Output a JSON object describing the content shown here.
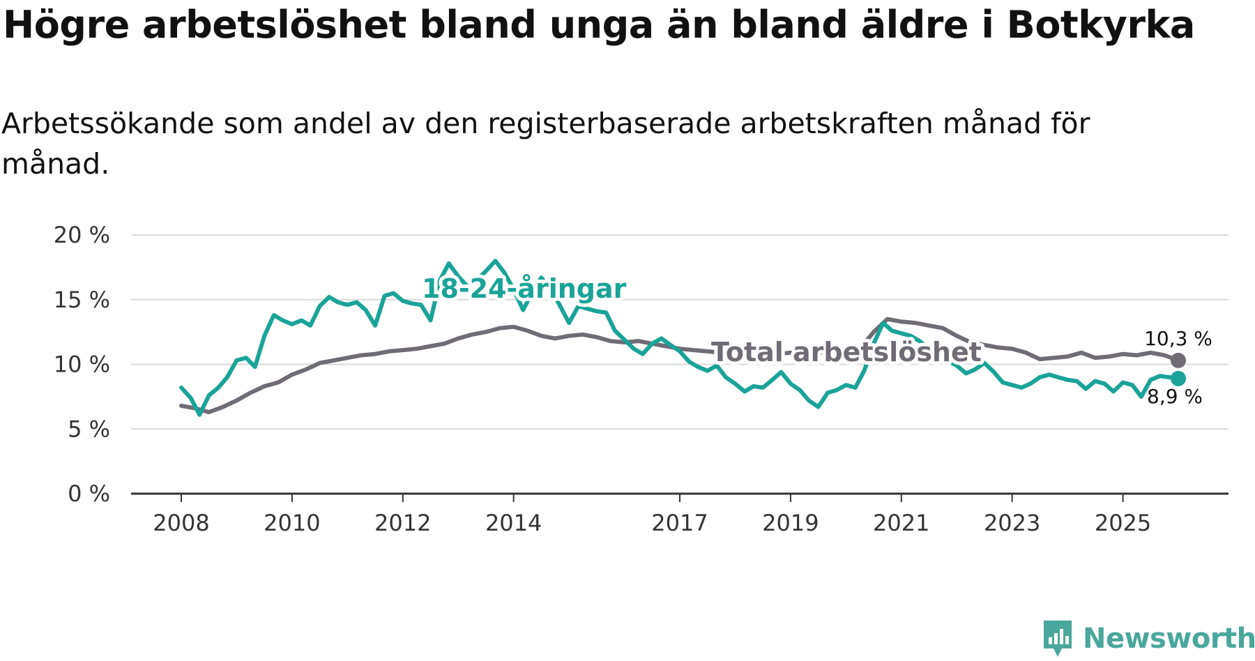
{
  "header": {
    "title": "Högre arbetslöshet bland unga än bland äldre i Botkyrka",
    "subtitle": "Arbetssökande som andel av den registerbaserade arbetskraften månad för månad."
  },
  "brand": {
    "name": "Newsworthy",
    "icon": "newsworthy-logo-icon",
    "color": "#4aa79d"
  },
  "chart_data": {
    "type": "line",
    "title": "Högre arbetslöshet bland unga än bland äldre i Botkyrka",
    "subtitle": "Arbetssökande som andel av den registerbaserade arbetskraften månad för månad.",
    "xlabel": "",
    "ylabel": "",
    "xlim": [
      2008,
      2026.25
    ],
    "ylim": [
      0,
      20
    ],
    "grid": true,
    "y_ticks": [
      0,
      5,
      10,
      15,
      20
    ],
    "y_tick_labels": [
      "0 %",
      "5 %",
      "10 %",
      "15 %",
      "20 %"
    ],
    "x_ticks": [
      2008,
      2010,
      2012,
      2014,
      2017,
      2019,
      2021,
      2023,
      2025
    ],
    "x_tick_labels": [
      "2008",
      "2010",
      "2012",
      "2014",
      "2017",
      "2019",
      "2021",
      "2023",
      "2025"
    ],
    "series": [
      {
        "name": "Total arbetslöshet",
        "color": "#706b74",
        "end_label": "10,3 %",
        "points": [
          [
            2008.0,
            6.8
          ],
          [
            2008.25,
            6.6
          ],
          [
            2008.5,
            6.3
          ],
          [
            2008.75,
            6.7
          ],
          [
            2009.0,
            7.2
          ],
          [
            2009.25,
            7.8
          ],
          [
            2009.5,
            8.3
          ],
          [
            2009.75,
            8.6
          ],
          [
            2010.0,
            9.2
          ],
          [
            2010.25,
            9.6
          ],
          [
            2010.5,
            10.1
          ],
          [
            2010.75,
            10.3
          ],
          [
            2011.0,
            10.5
          ],
          [
            2011.25,
            10.7
          ],
          [
            2011.5,
            10.8
          ],
          [
            2011.75,
            11.0
          ],
          [
            2012.0,
            11.1
          ],
          [
            2012.25,
            11.2
          ],
          [
            2012.5,
            11.4
          ],
          [
            2012.75,
            11.6
          ],
          [
            2013.0,
            12.0
          ],
          [
            2013.25,
            12.3
          ],
          [
            2013.5,
            12.5
          ],
          [
            2013.75,
            12.8
          ],
          [
            2014.0,
            12.9
          ],
          [
            2014.25,
            12.6
          ],
          [
            2014.5,
            12.2
          ],
          [
            2014.75,
            12.0
          ],
          [
            2015.0,
            12.2
          ],
          [
            2015.25,
            12.3
          ],
          [
            2015.5,
            12.1
          ],
          [
            2015.75,
            11.8
          ],
          [
            2016.0,
            11.7
          ],
          [
            2016.25,
            11.8
          ],
          [
            2016.5,
            11.6
          ],
          [
            2016.75,
            11.4
          ],
          [
            2017.0,
            11.2
          ],
          [
            2017.25,
            11.1
          ],
          [
            2017.5,
            11.0
          ],
          [
            2017.75,
            10.9
          ],
          [
            2018.0,
            10.8
          ],
          [
            2018.25,
            10.8
          ],
          [
            2018.5,
            10.7
          ],
          [
            2018.75,
            10.8
          ],
          [
            2019.0,
            10.9
          ],
          [
            2019.25,
            10.8
          ],
          [
            2019.5,
            10.9
          ],
          [
            2019.75,
            11.0
          ],
          [
            2020.0,
            11.0
          ],
          [
            2020.25,
            11.2
          ],
          [
            2020.5,
            12.5
          ],
          [
            2020.75,
            13.5
          ],
          [
            2021.0,
            13.3
          ],
          [
            2021.25,
            13.2
          ],
          [
            2021.5,
            13.0
          ],
          [
            2021.75,
            12.8
          ],
          [
            2022.0,
            12.2
          ],
          [
            2022.25,
            11.7
          ],
          [
            2022.5,
            11.5
          ],
          [
            2022.75,
            11.3
          ],
          [
            2023.0,
            11.2
          ],
          [
            2023.25,
            10.9
          ],
          [
            2023.5,
            10.4
          ],
          [
            2023.75,
            10.5
          ],
          [
            2024.0,
            10.6
          ],
          [
            2024.25,
            10.9
          ],
          [
            2024.5,
            10.5
          ],
          [
            2024.75,
            10.6
          ],
          [
            2025.0,
            10.8
          ],
          [
            2025.25,
            10.7
          ],
          [
            2025.5,
            10.9
          ],
          [
            2025.75,
            10.7
          ],
          [
            2026.0,
            10.3
          ]
        ]
      },
      {
        "name": "18-24-åringar",
        "color": "#1aa399",
        "end_label": "8,9 %",
        "points": [
          [
            2008.0,
            8.2
          ],
          [
            2008.17,
            7.4
          ],
          [
            2008.33,
            6.1
          ],
          [
            2008.5,
            7.6
          ],
          [
            2008.67,
            8.2
          ],
          [
            2008.83,
            9.0
          ],
          [
            2009.0,
            10.3
          ],
          [
            2009.17,
            10.5
          ],
          [
            2009.33,
            9.8
          ],
          [
            2009.5,
            12.2
          ],
          [
            2009.67,
            13.8
          ],
          [
            2009.83,
            13.4
          ],
          [
            2010.0,
            13.1
          ],
          [
            2010.17,
            13.4
          ],
          [
            2010.33,
            13.0
          ],
          [
            2010.5,
            14.5
          ],
          [
            2010.67,
            15.2
          ],
          [
            2010.83,
            14.8
          ],
          [
            2011.0,
            14.6
          ],
          [
            2011.17,
            14.8
          ],
          [
            2011.33,
            14.2
          ],
          [
            2011.5,
            13.0
          ],
          [
            2011.67,
            15.3
          ],
          [
            2011.83,
            15.5
          ],
          [
            2012.0,
            14.9
          ],
          [
            2012.17,
            14.7
          ],
          [
            2012.33,
            14.6
          ],
          [
            2012.5,
            13.4
          ],
          [
            2012.67,
            16.5
          ],
          [
            2012.83,
            17.8
          ],
          [
            2013.0,
            16.8
          ],
          [
            2013.17,
            16.0
          ],
          [
            2013.33,
            16.5
          ],
          [
            2013.5,
            17.2
          ],
          [
            2013.67,
            18.0
          ],
          [
            2013.83,
            17.1
          ],
          [
            2014.0,
            15.8
          ],
          [
            2014.17,
            14.2
          ],
          [
            2014.33,
            15.5
          ],
          [
            2014.5,
            16.7
          ],
          [
            2014.67,
            15.8
          ],
          [
            2014.83,
            14.6
          ],
          [
            2015.0,
            13.2
          ],
          [
            2015.17,
            14.5
          ],
          [
            2015.33,
            14.3
          ],
          [
            2015.5,
            14.1
          ],
          [
            2015.67,
            14.0
          ],
          [
            2015.83,
            12.6
          ],
          [
            2016.0,
            11.9
          ],
          [
            2016.17,
            11.2
          ],
          [
            2016.33,
            10.8
          ],
          [
            2016.5,
            11.6
          ],
          [
            2016.67,
            12.0
          ],
          [
            2016.83,
            11.5
          ],
          [
            2017.0,
            11.0
          ],
          [
            2017.17,
            10.2
          ],
          [
            2017.33,
            9.8
          ],
          [
            2017.5,
            9.5
          ],
          [
            2017.67,
            9.9
          ],
          [
            2017.83,
            9.0
          ],
          [
            2018.0,
            8.5
          ],
          [
            2018.17,
            7.9
          ],
          [
            2018.33,
            8.3
          ],
          [
            2018.5,
            8.2
          ],
          [
            2018.67,
            8.8
          ],
          [
            2018.83,
            9.4
          ],
          [
            2019.0,
            8.5
          ],
          [
            2019.17,
            8.0
          ],
          [
            2019.33,
            7.2
          ],
          [
            2019.5,
            6.7
          ],
          [
            2019.67,
            7.8
          ],
          [
            2019.83,
            8.0
          ],
          [
            2020.0,
            8.4
          ],
          [
            2020.17,
            8.2
          ],
          [
            2020.33,
            9.5
          ],
          [
            2020.5,
            11.6
          ],
          [
            2020.67,
            13.2
          ],
          [
            2020.83,
            12.6
          ],
          [
            2021.0,
            12.4
          ],
          [
            2021.17,
            12.2
          ],
          [
            2021.33,
            11.8
          ],
          [
            2021.5,
            11.2
          ],
          [
            2021.67,
            10.8
          ],
          [
            2021.83,
            10.3
          ],
          [
            2022.0,
            9.9
          ],
          [
            2022.17,
            9.3
          ],
          [
            2022.33,
            9.6
          ],
          [
            2022.5,
            10.1
          ],
          [
            2022.67,
            9.4
          ],
          [
            2022.83,
            8.6
          ],
          [
            2023.0,
            8.4
          ],
          [
            2023.17,
            8.2
          ],
          [
            2023.33,
            8.5
          ],
          [
            2023.5,
            9.0
          ],
          [
            2023.67,
            9.2
          ],
          [
            2023.83,
            9.0
          ],
          [
            2024.0,
            8.8
          ],
          [
            2024.17,
            8.7
          ],
          [
            2024.33,
            8.1
          ],
          [
            2024.5,
            8.7
          ],
          [
            2024.67,
            8.5
          ],
          [
            2024.83,
            7.9
          ],
          [
            2025.0,
            8.6
          ],
          [
            2025.17,
            8.4
          ],
          [
            2025.33,
            7.5
          ],
          [
            2025.5,
            8.8
          ],
          [
            2025.67,
            9.1
          ],
          [
            2025.83,
            9.0
          ],
          [
            2026.0,
            8.9
          ]
        ]
      }
    ]
  }
}
